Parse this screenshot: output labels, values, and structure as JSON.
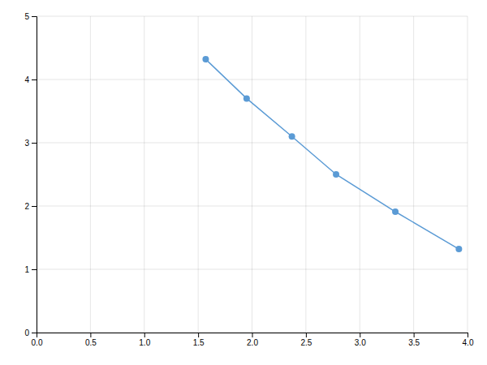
{
  "chart_data": {
    "type": "line",
    "x": [
      1.57,
      1.95,
      2.37,
      2.78,
      3.33,
      3.92
    ],
    "values": [
      4.32,
      3.7,
      3.1,
      2.5,
      1.91,
      1.32
    ],
    "color": "#5B9BD5",
    "marker": "circle",
    "xlim": [
      0.0,
      4.0
    ],
    "ylim": [
      0,
      5
    ],
    "xticks": [
      {
        "value": 0.0,
        "label": "0.0"
      },
      0.5,
      {
        "value": 1.0,
        "label": "1.0"
      },
      1.5,
      {
        "value": 2.0,
        "label": "2.0"
      },
      2.5,
      {
        "value": 3.0,
        "label": "3.0"
      },
      3.5,
      {
        "value": 4.0,
        "label": "4.0"
      }
    ],
    "yticks": [
      0,
      1,
      2,
      3,
      4,
      5
    ],
    "grid": true
  }
}
